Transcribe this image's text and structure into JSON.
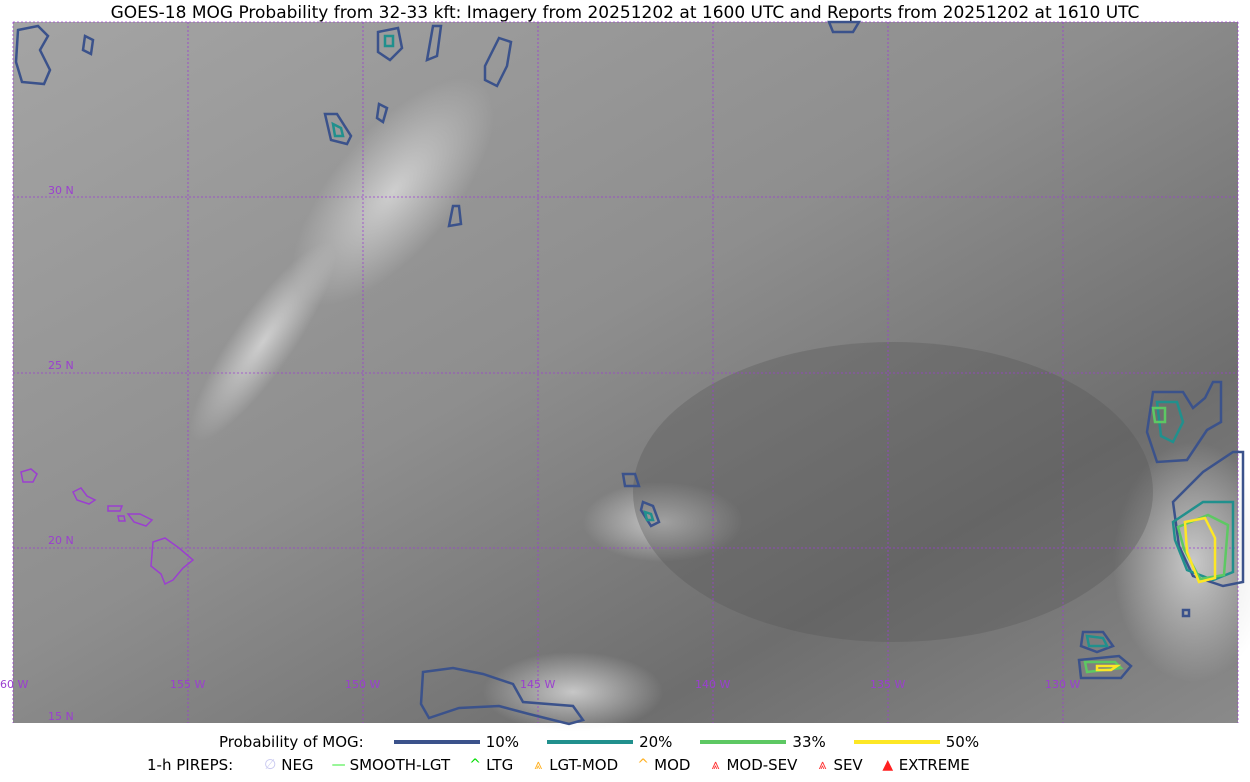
{
  "title": "GOES-18 MOG Probability from 32-33 kft: Imagery from 20251202 at 1600 UTC and Reports from 20251202 at 1610 UTC",
  "map": {
    "lat_labels": [
      "30 N",
      "25 N",
      "20 N",
      "15 N"
    ],
    "lon_labels": [
      "60 W",
      "155 W",
      "150 W",
      "145 W",
      "140 W",
      "135 W",
      "130 W"
    ],
    "gridline_color": "#9b3fd0",
    "coastline_color": "#9b3fd0"
  },
  "legend": {
    "probability_label": "Probability of MOG:",
    "probabilities": [
      {
        "label": "10%",
        "color": "#3b528b"
      },
      {
        "label": "20%",
        "color": "#21908d"
      },
      {
        "label": "33%",
        "color": "#5dc863"
      },
      {
        "label": "50%",
        "color": "#fde725"
      }
    ],
    "pireps_label": "1-h PIREPS:",
    "pireps": [
      {
        "label": "NEG",
        "icon": "neg-circle-icon",
        "glyph": "∅",
        "color": "#c8c8f0"
      },
      {
        "label": "SMOOTH-LGT",
        "icon": "smooth-line-icon",
        "glyph": "—",
        "color": "#33ee33"
      },
      {
        "label": "LTG",
        "icon": "caret-icon",
        "glyph": "^",
        "color": "#00dd00"
      },
      {
        "label": "LGT-MOD",
        "icon": "lgt-mod-triangle-icon",
        "glyph": "⩓",
        "color": "#ffb020"
      },
      {
        "label": "MOD",
        "icon": "mod-caret-icon",
        "glyph": "^",
        "color": "#ffb020"
      },
      {
        "label": "MOD-SEV",
        "icon": "mod-sev-icon",
        "glyph": "⩓",
        "color": "#ff3030"
      },
      {
        "label": "SEV",
        "icon": "sev-icon",
        "glyph": "⩓",
        "color": "#ff3030"
      },
      {
        "label": "EXTREME",
        "icon": "extreme-triangle-icon",
        "glyph": "▲",
        "color": "#ff2020"
      }
    ]
  }
}
